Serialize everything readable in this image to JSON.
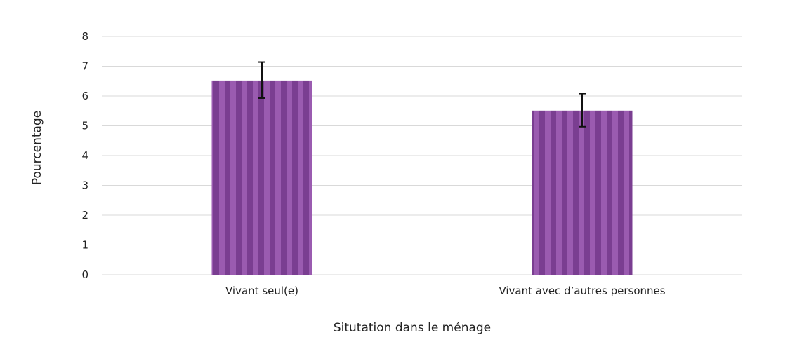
{
  "chart_data": {
    "type": "bar",
    "title": "",
    "xlabel": "Situtation dans le ménage",
    "ylabel": "Pourcentage",
    "categories": [
      "Vivant seul(e)",
      "Vivant avec d’autres personnes"
    ],
    "values": [
      6.52,
      5.51
    ],
    "error_low": [
      5.93,
      4.97
    ],
    "error_high": [
      7.14,
      6.08
    ],
    "ylim": [
      0,
      8
    ],
    "yticks": [
      0,
      1,
      2,
      3,
      4,
      5,
      6,
      7,
      8
    ],
    "grid": true,
    "legend": "none",
    "colors": {
      "bar_dark": "#7a3e91",
      "bar_light": "#9a5bb0",
      "gridline": "#d9d9d9",
      "error_bar": "#111111"
    }
  }
}
